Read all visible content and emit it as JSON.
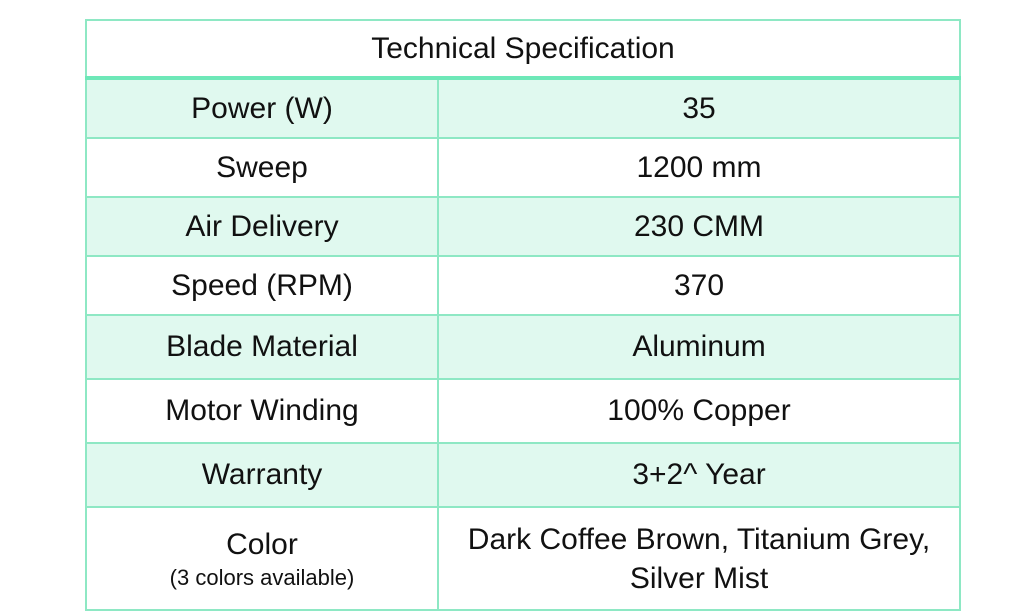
{
  "title": "Technical Specification",
  "rows": [
    {
      "label": "Power (W)",
      "value": "35"
    },
    {
      "label": "Sweep",
      "value": "1200 mm"
    },
    {
      "label": "Air Delivery",
      "value": "230 CMM"
    },
    {
      "label": "Speed (RPM)",
      "value": "370"
    },
    {
      "label": "Blade Material",
      "value": "Aluminum"
    },
    {
      "label": "Motor Winding",
      "value": "100% Copper"
    },
    {
      "label": "Warranty",
      "value": "3+2^ Year"
    },
    {
      "label": "Color",
      "sublabel": "(3 colors available)",
      "value": "Dark Coffee Brown, Titanium Grey, Silver Mist"
    }
  ],
  "colors": {
    "border": "#8ee8c4",
    "shaded_row": "#e0f9ef"
  }
}
